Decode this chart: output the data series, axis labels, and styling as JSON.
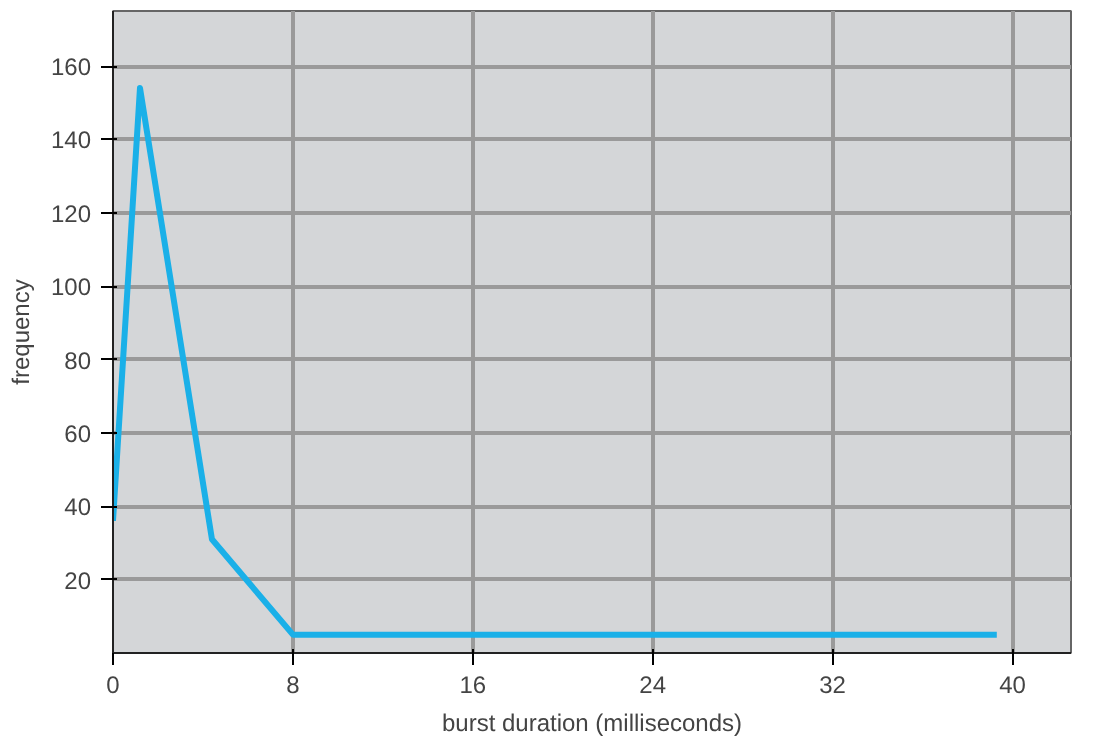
{
  "chart_data": {
    "type": "line",
    "xlabel": "burst duration (milliseconds)",
    "ylabel": "frequency",
    "x": [
      0,
      1.2,
      4.4,
      8,
      39.3
    ],
    "series": [
      {
        "color": "#1ab0e8",
        "values": [
          36,
          154,
          31,
          5,
          5
        ]
      }
    ],
    "xlim": [
      0,
      42.6
    ],
    "ylim": [
      0,
      175
    ],
    "xticks": [
      0,
      8,
      16,
      24,
      32,
      40
    ],
    "yticks": [
      20,
      40,
      60,
      80,
      100,
      120,
      140,
      160
    ],
    "grid": true,
    "marker": "none",
    "line_style": "solid"
  }
}
